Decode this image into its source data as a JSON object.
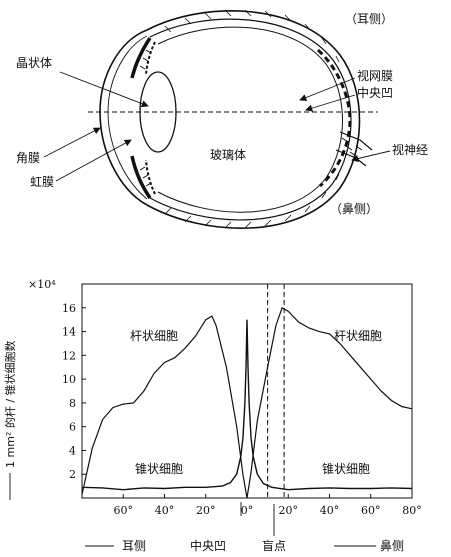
{
  "eye_diagram": {
    "temporal_side": "（耳侧）",
    "nasal_side": "（鼻侧）",
    "lens": "晶状体",
    "retina": "视网膜",
    "fovea": "中央凹",
    "cornea": "角膜",
    "iris": "虹膜",
    "vitreous": "玻璃体",
    "optic_nerve": "视神经"
  },
  "chart_data": {
    "type": "line",
    "ylabel": "1 mm² 的杆 / 锥状细胞数",
    "y_multiplier": "×10⁴",
    "ylim": [
      0,
      18
    ],
    "yticks": [
      "2",
      "4",
      "6",
      "8",
      "10",
      "12",
      "14",
      "16"
    ],
    "xlim": [
      -80,
      80
    ],
    "xtick_labels": [
      "60°",
      "40°",
      "20°",
      "0°",
      "20°",
      "40°",
      "60°",
      "80°"
    ],
    "series": [
      {
        "name": "杆状细胞",
        "label_left": "杆状细胞",
        "label_right": "杆状细胞",
        "points": [
          [
            -80,
            0.3
          ],
          [
            -75,
            4.2
          ],
          [
            -70,
            6.6
          ],
          [
            -65,
            7.6
          ],
          [
            -60,
            7.9
          ],
          [
            -55,
            8.0
          ],
          [
            -50,
            9.0
          ],
          [
            -45,
            10.5
          ],
          [
            -40,
            11.4
          ],
          [
            -35,
            11.8
          ],
          [
            -30,
            12.6
          ],
          [
            -25,
            13.6
          ],
          [
            -20,
            15.0
          ],
          [
            -17,
            15.3
          ],
          [
            -15,
            14.5
          ],
          [
            -10,
            11.0
          ],
          [
            -5,
            6.0
          ],
          [
            -2,
            2.0
          ],
          [
            0,
            0
          ],
          [
            2,
            2.2
          ],
          [
            5,
            6.5
          ],
          [
            10,
            11.0
          ],
          [
            14,
            14.5
          ],
          [
            17,
            16.0
          ],
          [
            20,
            15.7
          ],
          [
            25,
            14.8
          ],
          [
            30,
            14.3
          ],
          [
            35,
            14.0
          ],
          [
            40,
            13.8
          ],
          [
            45,
            13.0
          ],
          [
            50,
            12.0
          ],
          [
            55,
            11.0
          ],
          [
            60,
            10.0
          ],
          [
            65,
            9.0
          ],
          [
            70,
            8.2
          ],
          [
            75,
            7.7
          ],
          [
            80,
            7.5
          ]
        ]
      },
      {
        "name": "锥状细胞",
        "label_left": "锥状细胞",
        "label_right": "锥状细胞",
        "points": [
          [
            -80,
            0.9
          ],
          [
            -70,
            0.85
          ],
          [
            -60,
            0.7
          ],
          [
            -50,
            0.85
          ],
          [
            -40,
            0.8
          ],
          [
            -30,
            0.9
          ],
          [
            -20,
            0.9
          ],
          [
            -12,
            1.0
          ],
          [
            -8,
            1.3
          ],
          [
            -5,
            2.0
          ],
          [
            -3,
            3.5
          ],
          [
            -2,
            5.0
          ],
          [
            -1,
            8.0
          ],
          [
            -0.5,
            11.0
          ],
          [
            0,
            15.0
          ],
          [
            0.5,
            11.0
          ],
          [
            1,
            8.0
          ],
          [
            2,
            5.0
          ],
          [
            3,
            3.5
          ],
          [
            5,
            2.0
          ],
          [
            8,
            1.2
          ],
          [
            12,
            0.9
          ],
          [
            20,
            0.7
          ],
          [
            30,
            0.8
          ],
          [
            40,
            0.85
          ],
          [
            50,
            0.8
          ],
          [
            60,
            0.8
          ],
          [
            70,
            0.85
          ],
          [
            80,
            0.8
          ]
        ]
      }
    ],
    "blind_spot_bounds": [
      10,
      18
    ],
    "bottom_labels": {
      "temporal": "耳侧",
      "fovea": "中央凹",
      "blind_spot": "盲点",
      "nasal": "鼻侧"
    }
  }
}
